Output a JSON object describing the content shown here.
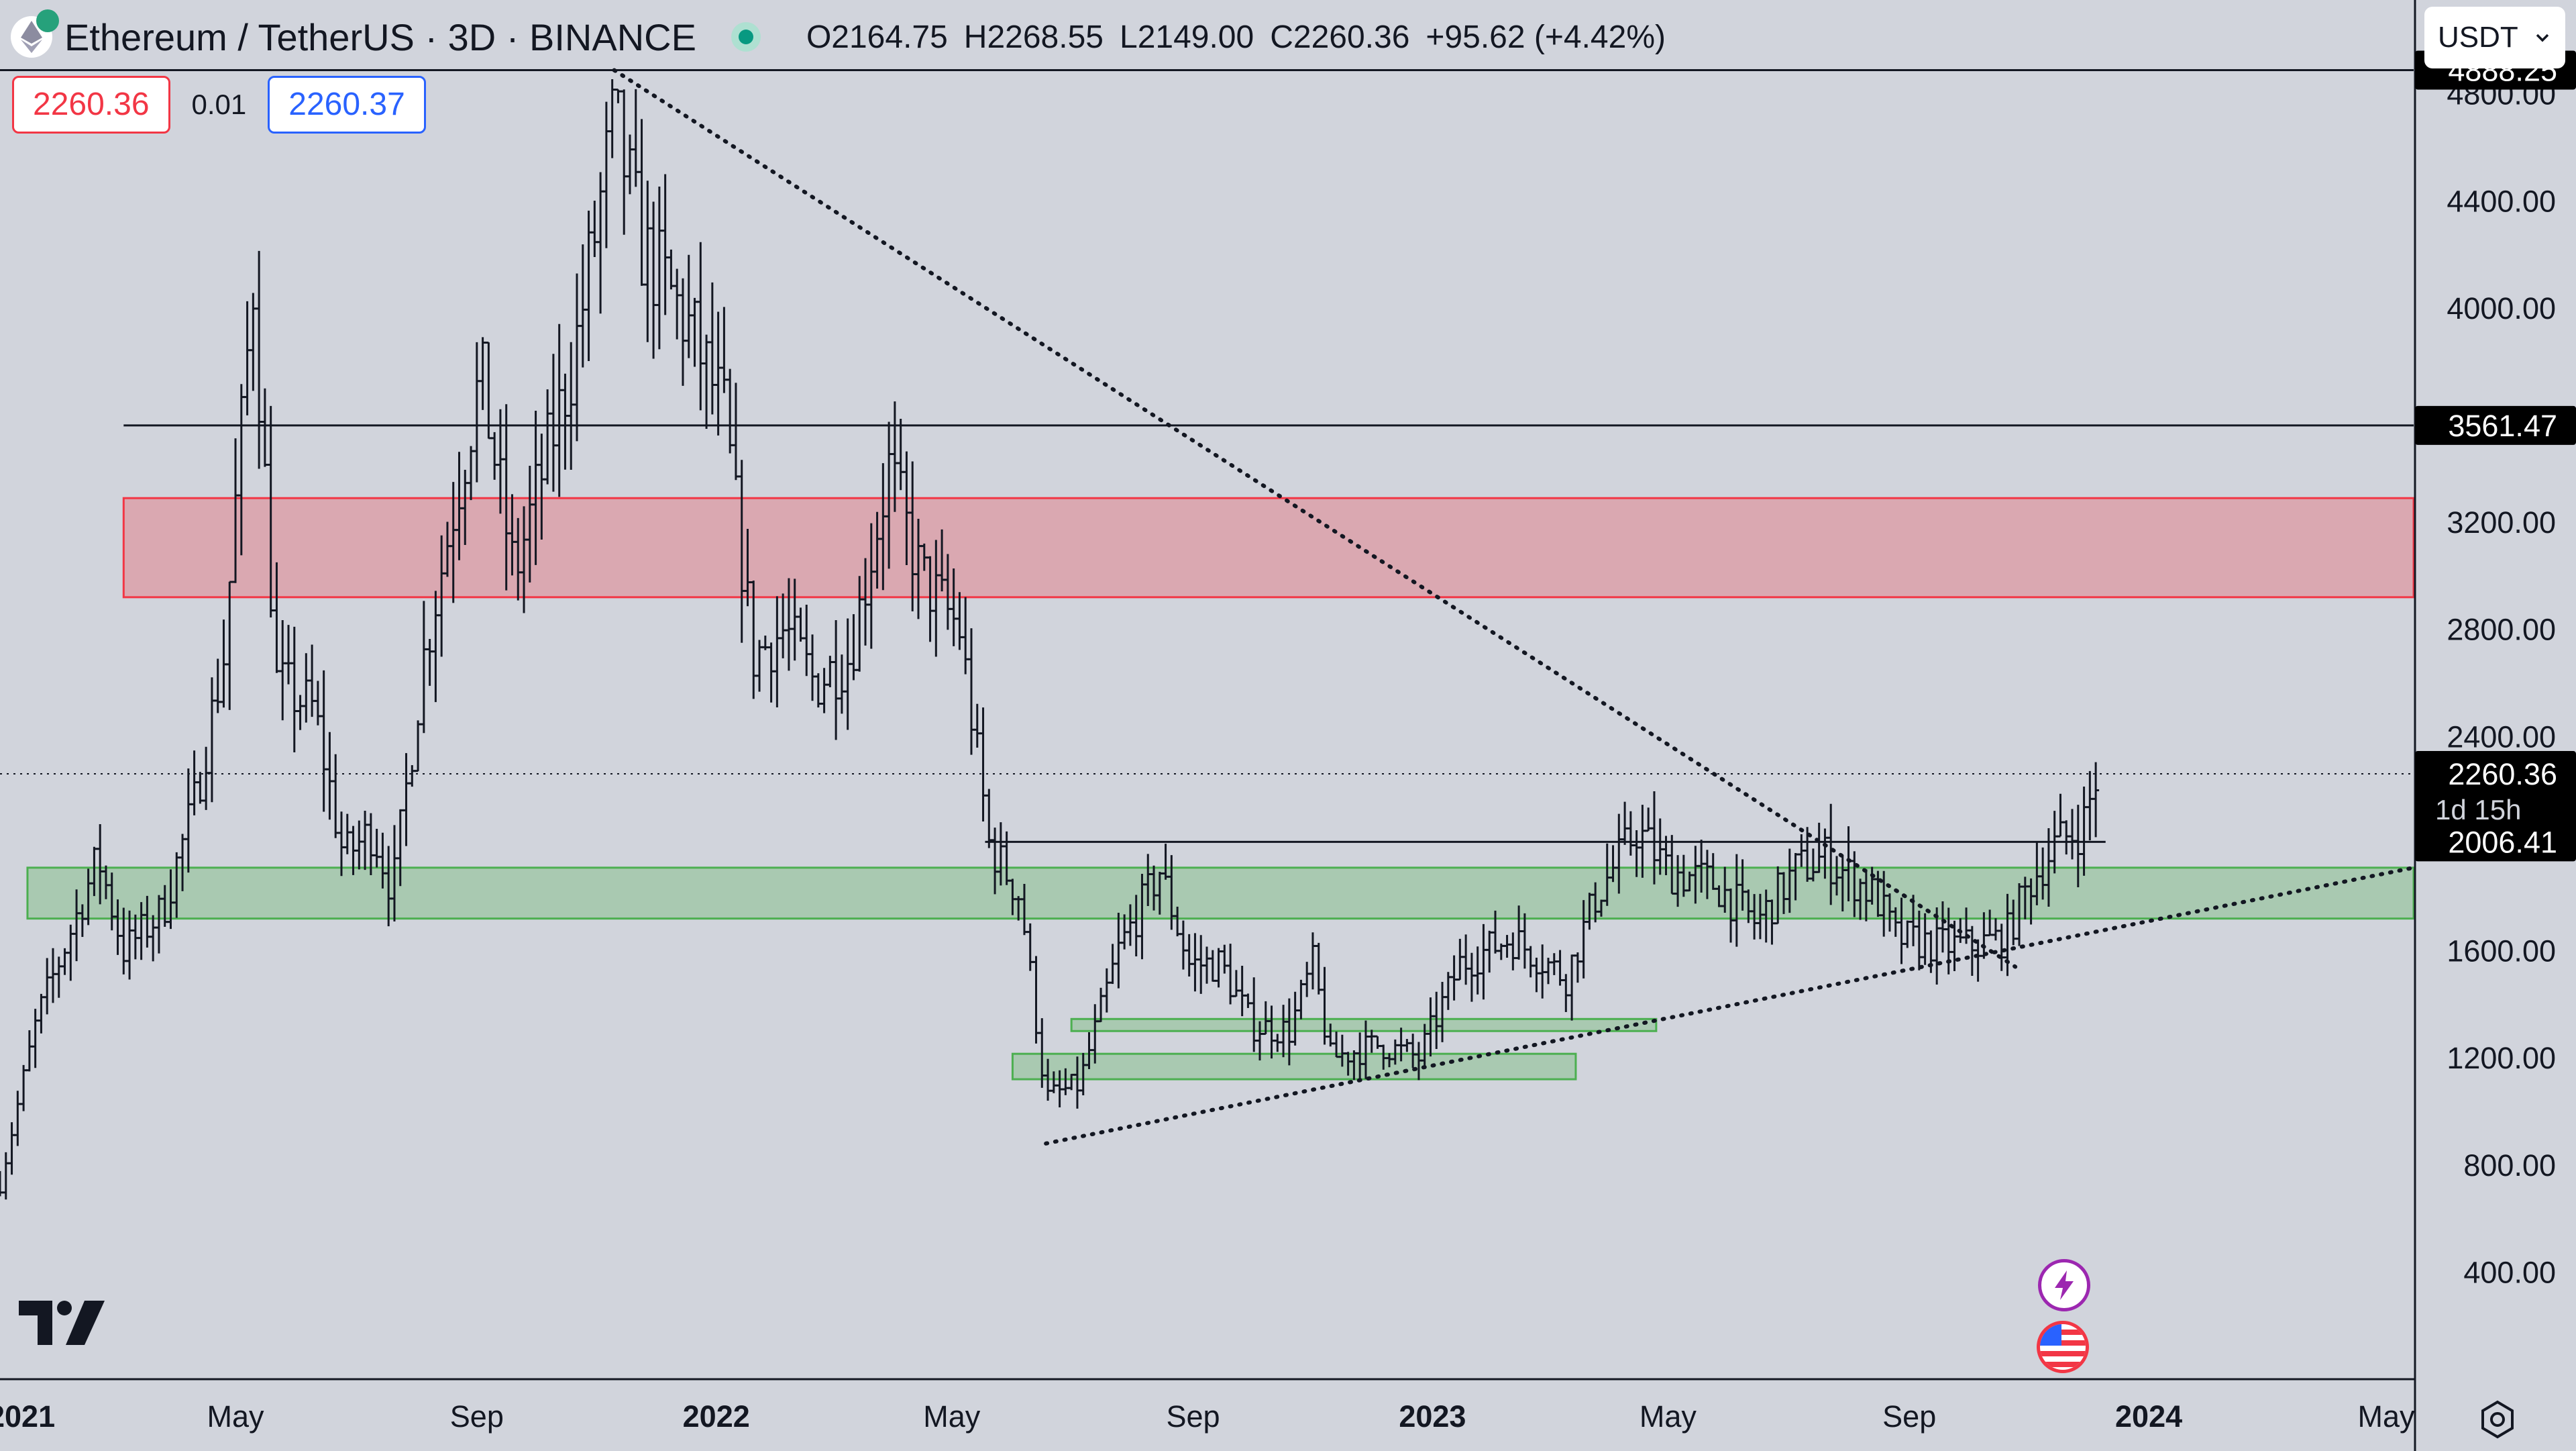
{
  "header": {
    "title": "Ethereum / TetherUS · 3D · BINANCE",
    "ohlc": [
      {
        "k": "O",
        "v": "2164.75"
      },
      {
        "k": "H",
        "v": "2268.55"
      },
      {
        "k": "L",
        "v": "2149.00"
      },
      {
        "k": "C",
        "v": "2260.36"
      }
    ],
    "change": "+95.62 (+4.42%)"
  },
  "trade": {
    "sell": "2260.36",
    "spread": "0.01",
    "buy": "2260.37"
  },
  "currency": {
    "label": "USDT"
  },
  "colors": {
    "background": "#d1d4dc",
    "candle": "#131722",
    "resistance_zone": "#f23645",
    "support_zone": "#4caf50",
    "accent_blue": "#2962ff"
  },
  "icons": [
    "ethereum-icon",
    "live-status-icon",
    "chevron-down-icon",
    "tradingview-logo-icon",
    "bolt-icon",
    "us-flag-icon",
    "settings-icon"
  ],
  "chart_data": {
    "type": "candlestick",
    "symbol": "Ethereum / TetherUS",
    "interval": "3D",
    "exchange": "BINANCE",
    "y_range": [
      0,
      5150
    ],
    "y_ticks": [
      400,
      800,
      1200,
      1600,
      2000,
      2400,
      2800,
      3200,
      3600,
      4000,
      4400,
      4800
    ],
    "y_tick_labels": [
      "400.00",
      "800.00",
      "1200.00",
      "1600.00",
      "",
      "2400.00",
      "2800.00",
      "3200.00",
      "",
      "4000.00",
      "4400.00",
      "4800.00"
    ],
    "x_ticks": [
      {
        "label": "2021",
        "date": "2021-01-01"
      },
      {
        "label": "May",
        "date": "2021-05-01"
      },
      {
        "label": "Sep",
        "date": "2021-09-01"
      },
      {
        "label": "2022",
        "date": "2022-01-01"
      },
      {
        "label": "May",
        "date": "2022-05-01"
      },
      {
        "label": "Sep",
        "date": "2022-09-01"
      },
      {
        "label": "2023",
        "date": "2023-01-01"
      },
      {
        "label": "May",
        "date": "2023-05-01"
      },
      {
        "label": "Sep",
        "date": "2023-09-01"
      },
      {
        "label": "2024",
        "date": "2024-01-01"
      },
      {
        "label": "May",
        "date": "2024-05-01"
      }
    ],
    "x_range": [
      "2021-01-01",
      "2024-05-15"
    ],
    "price_labels": [
      {
        "value": 4888.25,
        "label": "4888.25"
      },
      {
        "value": 3561.47,
        "label": "3561.47"
      },
      {
        "value": 2260.36,
        "label": "2260.36",
        "sub": "1d 15h"
      },
      {
        "value": 2006.41,
        "label": "2006.41"
      }
    ],
    "horizontal_lines": [
      {
        "value": 4888.25,
        "from": "2021-01-01",
        "to": "2024-05-15"
      },
      {
        "value": 3561.47,
        "from": "2021-03-05",
        "to": "2024-05-15"
      },
      {
        "value": 2006.41,
        "from": "2022-05-18",
        "to": "2023-12-10"
      }
    ],
    "current_price_line": 2260.36,
    "zones": [
      {
        "kind": "resistance",
        "from": "2021-03-05",
        "to": "2024-05-15",
        "low": 2920,
        "high": 3290
      },
      {
        "kind": "support",
        "from": "2021-01-15",
        "to": "2024-05-15",
        "low": 1720,
        "high": 1910
      },
      {
        "kind": "support",
        "from": "2022-07-01",
        "to": "2023-04-25",
        "low": 1300,
        "high": 1345
      },
      {
        "kind": "support",
        "from": "2022-06-01",
        "to": "2023-03-15",
        "low": 1120,
        "high": 1215
      }
    ],
    "trendlines": [
      {
        "style": "dotted",
        "from": {
          "date": "2021-11-10",
          "value": 4888
        },
        "to": {
          "date": "2023-10-25",
          "value": 1540
        }
      },
      {
        "style": "dotted",
        "from": {
          "date": "2022-06-18",
          "value": 880
        },
        "to": {
          "date": "2024-05-15",
          "value": 1910
        }
      }
    ],
    "series_outline": [
      [
        "2021-01-01",
        730
      ],
      [
        "2021-01-20",
        1350
      ],
      [
        "2021-02-10",
        1750
      ],
      [
        "2021-02-20",
        1950
      ],
      [
        "2021-03-05",
        1600
      ],
      [
        "2021-03-25",
        1750
      ],
      [
        "2021-04-10",
        2150
      ],
      [
        "2021-04-25",
        2700
      ],
      [
        "2021-05-10",
        4100
      ],
      [
        "2021-05-22",
        2600
      ],
      [
        "2021-06-10",
        2500
      ],
      [
        "2021-06-25",
        1950
      ],
      [
        "2021-07-10",
        2050
      ],
      [
        "2021-07-20",
        1820
      ],
      [
        "2021-08-05",
        2700
      ],
      [
        "2021-08-20",
        3250
      ],
      [
        "2021-09-03",
        3750
      ],
      [
        "2021-09-20",
        3000
      ],
      [
        "2021-10-01",
        3300
      ],
      [
        "2021-10-20",
        3800
      ],
      [
        "2021-11-10",
        4700
      ],
      [
        "2021-11-25",
        4200
      ],
      [
        "2021-12-05",
        4100
      ],
      [
        "2021-12-20",
        3900
      ],
      [
        "2022-01-05",
        3600
      ],
      [
        "2022-01-20",
        2700
      ],
      [
        "2022-02-05",
        2800
      ],
      [
        "2022-02-20",
        2600
      ],
      [
        "2022-03-10",
        2700
      ],
      [
        "2022-03-30",
        3400
      ],
      [
        "2022-04-15",
        3000
      ],
      [
        "2022-05-05",
        2800
      ],
      [
        "2022-05-20",
        2000
      ],
      [
        "2022-06-05",
        1800
      ],
      [
        "2022-06-18",
        1050
      ],
      [
        "2022-07-05",
        1100
      ],
      [
        "2022-07-25",
        1600
      ],
      [
        "2022-08-15",
        1900
      ],
      [
        "2022-08-30",
        1550
      ],
      [
        "2022-09-15",
        1550
      ],
      [
        "2022-10-01",
        1320
      ],
      [
        "2022-10-20",
        1300
      ],
      [
        "2022-11-01",
        1550
      ],
      [
        "2022-11-10",
        1200
      ],
      [
        "2022-12-05",
        1250
      ],
      [
        "2022-12-25",
        1200
      ],
      [
        "2023-01-15",
        1550
      ],
      [
        "2023-02-10",
        1650
      ],
      [
        "2023-03-10",
        1500
      ],
      [
        "2023-03-25",
        1800
      ],
      [
        "2023-04-15",
        2050
      ],
      [
        "2023-05-01",
        1900
      ],
      [
        "2023-05-25",
        1850
      ],
      [
        "2023-06-15",
        1700
      ],
      [
        "2023-07-05",
        1900
      ],
      [
        "2023-07-20",
        1950
      ],
      [
        "2023-08-15",
        1800
      ],
      [
        "2023-08-25",
        1650
      ],
      [
        "2023-09-15",
        1620
      ],
      [
        "2023-10-05",
        1620
      ],
      [
        "2023-10-20",
        1650
      ],
      [
        "2023-11-01",
        1850
      ],
      [
        "2023-11-15",
        2000
      ],
      [
        "2023-11-28",
        2060
      ],
      [
        "2023-12-06",
        2260
      ]
    ]
  }
}
